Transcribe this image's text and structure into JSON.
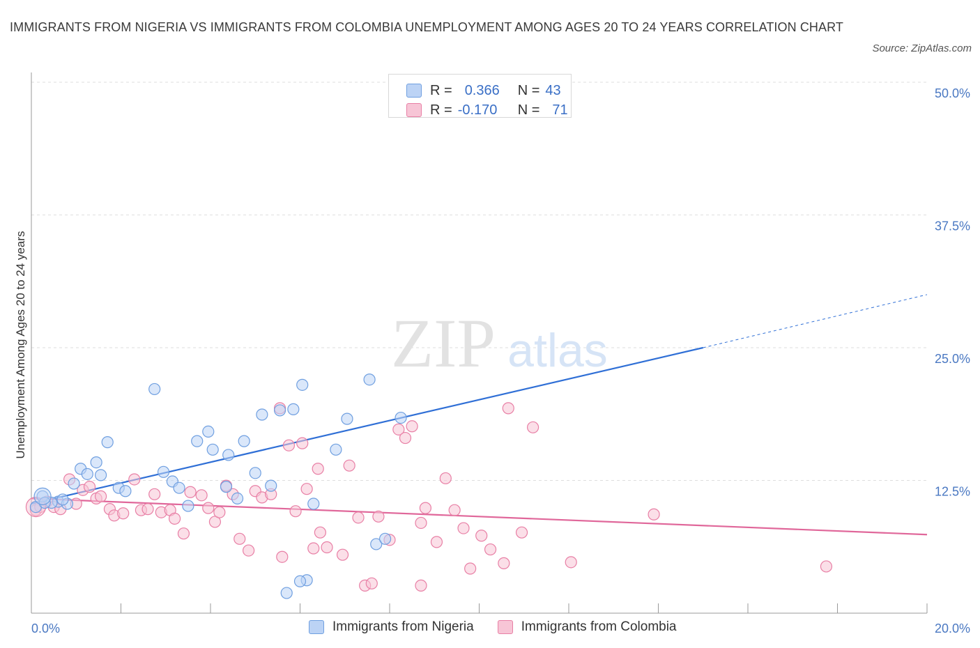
{
  "title": "IMMIGRANTS FROM NIGERIA VS IMMIGRANTS FROM COLOMBIA UNEMPLOYMENT AMONG AGES 20 TO 24 YEARS CORRELATION CHART",
  "source": "Source: ZipAtlas.com",
  "watermark": {
    "zip": "ZIP",
    "atlas": "atlas"
  },
  "legend": {
    "r_label": "R =",
    "n_label": "N =",
    "nigeria": {
      "r": "0.366",
      "n": "43"
    },
    "colombia": {
      "r": "-0.170",
      "n": "71"
    }
  },
  "colors": {
    "nigeria": "#6f9fe0",
    "nigeria_fill": "#bcd3f5",
    "colombia": "#e87fa5",
    "colombia_fill": "#f7c5d6",
    "nigeria_line": "#2f6fd6",
    "colombia_line": "#e0679a",
    "tick": "#4a78c2"
  },
  "chart_data": {
    "type": "scatter",
    "title": "IMMIGRANTS FROM NIGERIA VS IMMIGRANTS FROM COLOMBIA UNEMPLOYMENT AMONG AGES 20 TO 24 YEARS CORRELATION CHART",
    "xlabel": "",
    "ylabel": "Unemployment Among Ages 20 to 24 years",
    "xlim": [
      0,
      20
    ],
    "ylim": [
      0,
      50
    ],
    "x_ticks": [
      "0.0%",
      "20.0%"
    ],
    "y_ticks": [
      {
        "value": 12.5,
        "label": "12.5%"
      },
      {
        "value": 25,
        "label": "25.0%"
      },
      {
        "value": 37.5,
        "label": "37.5%"
      },
      {
        "value": 50,
        "label": "50.0%"
      }
    ],
    "grid": true,
    "legend_position": "top-center",
    "series": [
      {
        "name": "Immigrants from Nigeria",
        "r": 0.366,
        "n": 43,
        "trend": {
          "x0": 0,
          "y0": 10.3,
          "x1": 15.0,
          "y1": 25.0,
          "dash_to_x": 20.0,
          "dash_to_y": 30.0
        },
        "points": [
          [
            0.25,
            11.0
          ],
          [
            0.6,
            10.5
          ],
          [
            0.8,
            10.3
          ],
          [
            0.45,
            10.4
          ],
          [
            0.95,
            12.2
          ],
          [
            1.1,
            13.6
          ],
          [
            1.25,
            13.1
          ],
          [
            1.45,
            14.2
          ],
          [
            1.7,
            16.1
          ],
          [
            1.55,
            13.0
          ],
          [
            1.95,
            11.8
          ],
          [
            2.1,
            11.5
          ],
          [
            2.75,
            21.1
          ],
          [
            2.95,
            13.3
          ],
          [
            3.15,
            12.4
          ],
          [
            3.3,
            11.8
          ],
          [
            3.5,
            10.1
          ],
          [
            3.7,
            16.2
          ],
          [
            3.95,
            17.1
          ],
          [
            4.05,
            15.4
          ],
          [
            4.4,
            14.9
          ],
          [
            4.35,
            11.9
          ],
          [
            4.6,
            10.8
          ],
          [
            4.75,
            16.2
          ],
          [
            5.0,
            13.2
          ],
          [
            5.15,
            18.7
          ],
          [
            5.35,
            12.0
          ],
          [
            5.55,
            19.1
          ],
          [
            5.85,
            19.2
          ],
          [
            6.05,
            21.5
          ],
          [
            6.3,
            10.3
          ],
          [
            6.8,
            15.4
          ],
          [
            7.05,
            18.3
          ],
          [
            7.55,
            22.0
          ],
          [
            7.7,
            6.5
          ],
          [
            7.9,
            7.0
          ],
          [
            8.25,
            18.4
          ],
          [
            6.15,
            3.1
          ],
          [
            6.0,
            3.0
          ],
          [
            5.7,
            1.9
          ],
          [
            0.1,
            10.0
          ],
          [
            0.3,
            10.4
          ],
          [
            0.7,
            10.7
          ]
        ]
      },
      {
        "name": "Immigrants from Colombia",
        "r": -0.17,
        "n": 71,
        "trend": {
          "x0": 0,
          "y0": 10.8,
          "x1": 20.0,
          "y1": 7.4
        },
        "points": [
          [
            0.1,
            9.7
          ],
          [
            0.2,
            10.0
          ],
          [
            0.35,
            10.5
          ],
          [
            0.5,
            10.0
          ],
          [
            0.65,
            9.8
          ],
          [
            0.85,
            12.6
          ],
          [
            1.0,
            10.3
          ],
          [
            1.15,
            11.6
          ],
          [
            1.3,
            11.9
          ],
          [
            1.45,
            10.8
          ],
          [
            1.55,
            11.0
          ],
          [
            1.75,
            9.8
          ],
          [
            1.85,
            9.2
          ],
          [
            2.05,
            9.4
          ],
          [
            2.3,
            12.6
          ],
          [
            2.45,
            9.7
          ],
          [
            2.6,
            9.8
          ],
          [
            2.75,
            11.2
          ],
          [
            2.9,
            9.5
          ],
          [
            3.1,
            9.7
          ],
          [
            3.2,
            8.9
          ],
          [
            3.4,
            7.5
          ],
          [
            3.55,
            11.4
          ],
          [
            3.8,
            11.1
          ],
          [
            3.95,
            9.9
          ],
          [
            4.1,
            8.6
          ],
          [
            4.2,
            9.5
          ],
          [
            4.35,
            12.0
          ],
          [
            4.5,
            11.2
          ],
          [
            4.65,
            7.0
          ],
          [
            4.85,
            5.9
          ],
          [
            5.0,
            11.5
          ],
          [
            5.15,
            10.9
          ],
          [
            5.35,
            11.2
          ],
          [
            5.6,
            5.3
          ],
          [
            5.75,
            15.8
          ],
          [
            5.9,
            9.6
          ],
          [
            6.05,
            16.0
          ],
          [
            6.15,
            11.7
          ],
          [
            6.3,
            6.1
          ],
          [
            6.45,
            7.6
          ],
          [
            6.6,
            6.2
          ],
          [
            6.95,
            5.5
          ],
          [
            7.1,
            13.9
          ],
          [
            7.45,
            2.6
          ],
          [
            7.6,
            2.8
          ],
          [
            7.75,
            9.1
          ],
          [
            8.0,
            6.9
          ],
          [
            8.2,
            17.3
          ],
          [
            8.35,
            16.5
          ],
          [
            8.5,
            17.6
          ],
          [
            8.7,
            2.6
          ],
          [
            8.8,
            9.9
          ],
          [
            9.05,
            6.7
          ],
          [
            9.25,
            12.7
          ],
          [
            9.45,
            9.7
          ],
          [
            9.65,
            8.0
          ],
          [
            9.8,
            4.2
          ],
          [
            10.05,
            7.3
          ],
          [
            10.25,
            6.0
          ],
          [
            10.55,
            4.7
          ],
          [
            10.65,
            19.3
          ],
          [
            10.95,
            7.6
          ],
          [
            11.2,
            17.5
          ],
          [
            12.05,
            4.8
          ],
          [
            13.9,
            9.3
          ],
          [
            17.75,
            4.4
          ],
          [
            8.7,
            8.5
          ],
          [
            6.4,
            13.6
          ],
          [
            5.55,
            19.3
          ],
          [
            7.3,
            9.0
          ]
        ]
      }
    ]
  },
  "bottom_legend": {
    "nigeria": "Immigrants from Nigeria",
    "colombia": "Immigrants from Colombia"
  }
}
